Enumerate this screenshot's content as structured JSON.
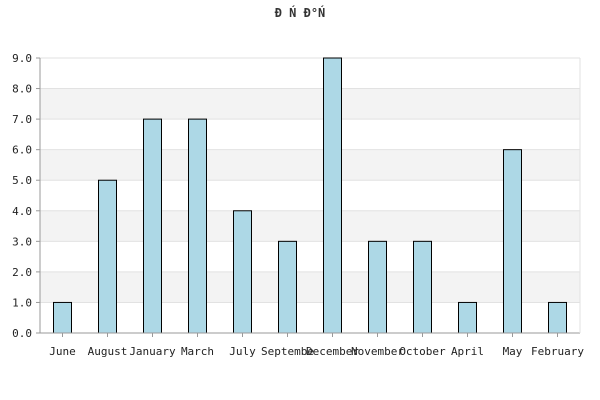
{
  "chart_data": {
    "type": "bar",
    "title": "Đ Ń Đ°Ń",
    "categories": [
      "June",
      "August",
      "January",
      "March",
      "July",
      "Septembe",
      "December",
      "November",
      "October",
      "April",
      "May",
      "February"
    ],
    "values": [
      1,
      5,
      7,
      7,
      4,
      3,
      9,
      3,
      3,
      1,
      6,
      1
    ],
    "ylim": [
      0,
      9
    ],
    "yticks": [
      "0.0",
      "1.0",
      "2.0",
      "3.0",
      "4.0",
      "5.0",
      "6.0",
      "7.0",
      "8.0",
      "9.0"
    ],
    "grid": true,
    "colors": {
      "bar": "#add8e6",
      "bar_outline": "#000000",
      "band": "#f3f3f3"
    }
  }
}
